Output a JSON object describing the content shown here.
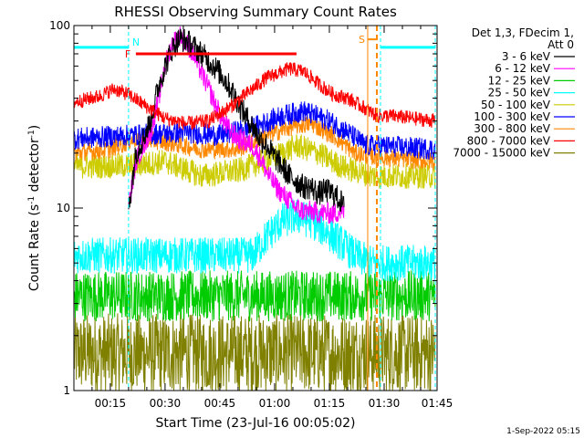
{
  "chart_data": {
    "type": "line",
    "title": "RHESSI Observing Summary Count Rates",
    "xlabel": "Start Time (23-Jul-16 00:05:02)",
    "ylabel_main": "Count Rate (s",
    "ylabel_sup1": "-1",
    "ylabel_mid": " detector",
    "ylabel_sup2": "-1",
    "ylabel_end": ")",
    "y_scale": "log",
    "ylim": [
      1,
      100
    ],
    "xlim_minutes": [
      5.033,
      104.5
    ],
    "x_tick_minutes": [
      15,
      30,
      45,
      60,
      75,
      90,
      105
    ],
    "x_ticks": [
      "00:15",
      "00:30",
      "00:45",
      "01:00",
      "01:15",
      "01:30",
      "01:45"
    ],
    "y_tick_values": [
      1,
      10,
      100
    ],
    "y_ticks": [
      "1",
      "10",
      "100"
    ],
    "grid": false,
    "legend": {
      "position": "top-right",
      "header_line1": "Det 1,3, FDecim 1,",
      "header_line2": "Att 0"
    },
    "series": [
      {
        "name": "3 - 6 keV",
        "color": "#000000",
        "points": [
          [
            19,
            null
          ],
          [
            20,
            10
          ],
          [
            22,
            20
          ],
          [
            24,
            24
          ],
          [
            26,
            30
          ],
          [
            28,
            45
          ],
          [
            30,
            60
          ],
          [
            32,
            75
          ],
          [
            34,
            85
          ],
          [
            36,
            82
          ],
          [
            38,
            76
          ],
          [
            40,
            70
          ],
          [
            42,
            64
          ],
          [
            44,
            58
          ],
          [
            46,
            52
          ],
          [
            48,
            45
          ],
          [
            50,
            38
          ],
          [
            52,
            32
          ],
          [
            54,
            28
          ],
          [
            56,
            24
          ],
          [
            58,
            22
          ],
          [
            60,
            19
          ],
          [
            62,
            17
          ],
          [
            64,
            15
          ],
          [
            66,
            14
          ],
          [
            68,
            13
          ],
          [
            70,
            13
          ],
          [
            72,
            12
          ],
          [
            74,
            12.5
          ],
          [
            76,
            12
          ],
          [
            78,
            11
          ],
          [
            79,
            10
          ]
        ],
        "noise": 0.07
      },
      {
        "name": "6 - 12 keV",
        "color": "#ff00ff",
        "points": [
          [
            19,
            null
          ],
          [
            20,
            10
          ],
          [
            22,
            18
          ],
          [
            24,
            22
          ],
          [
            26,
            26
          ],
          [
            28,
            38
          ],
          [
            30,
            60
          ],
          [
            32,
            80
          ],
          [
            34,
            88
          ],
          [
            36,
            80
          ],
          [
            38,
            68
          ],
          [
            40,
            55
          ],
          [
            42,
            45
          ],
          [
            44,
            36
          ],
          [
            46,
            30
          ],
          [
            48,
            26
          ],
          [
            50,
            24
          ],
          [
            52,
            23
          ],
          [
            54,
            22
          ],
          [
            56,
            19
          ],
          [
            58,
            15.5
          ],
          [
            60,
            13.5
          ],
          [
            62,
            12
          ],
          [
            64,
            11
          ],
          [
            66,
            10
          ],
          [
            68,
            9.6
          ],
          [
            70,
            9.6
          ],
          [
            72,
            9.4
          ],
          [
            74,
            9.4
          ],
          [
            76,
            9.3
          ],
          [
            78,
            9.6
          ],
          [
            79,
            9.6
          ]
        ],
        "noise": 0.06
      },
      {
        "name": "12 - 25 keV",
        "color": "#00cc00",
        "points": [
          [
            5.1,
            3.3
          ],
          [
            104,
            3.3
          ]
        ],
        "noise": 0.14
      },
      {
        "name": "25 - 50 keV",
        "color": "#00ffff",
        "points": [
          [
            5.1,
            5.5
          ],
          [
            54,
            5.5
          ],
          [
            58,
            7
          ],
          [
            62,
            8.5
          ],
          [
            66,
            9
          ],
          [
            70,
            8.5
          ],
          [
            74,
            7.5
          ],
          [
            78,
            6.5
          ],
          [
            82,
            5.5
          ],
          [
            86,
            5
          ],
          [
            104,
            5
          ]
        ],
        "noise": 0.1
      },
      {
        "name": "50 - 100 keV",
        "color": "#cccc00",
        "points": [
          [
            5.1,
            17
          ],
          [
            20,
            17
          ],
          [
            30,
            18
          ],
          [
            40,
            15
          ],
          [
            50,
            16
          ],
          [
            60,
            19
          ],
          [
            66,
            22
          ],
          [
            72,
            20
          ],
          [
            78,
            17
          ],
          [
            82,
            16
          ],
          [
            87,
            15
          ],
          [
            104,
            15
          ]
        ],
        "noise": 0.07
      },
      {
        "name": "100 - 300 keV",
        "color": "#0000ff",
        "points": [
          [
            5.1,
            24
          ],
          [
            20,
            25
          ],
          [
            35,
            26
          ],
          [
            45,
            25
          ],
          [
            55,
            28
          ],
          [
            62,
            32
          ],
          [
            68,
            34
          ],
          [
            75,
            30
          ],
          [
            80,
            26
          ],
          [
            85,
            22
          ],
          [
            88,
            22
          ],
          [
            104,
            21
          ]
        ],
        "noise": 0.06
      },
      {
        "name": "300 - 800 keV",
        "color": "#ff8800",
        "points": [
          [
            5.1,
            20
          ],
          [
            15,
            21
          ],
          [
            22,
            24
          ],
          [
            30,
            23
          ],
          [
            40,
            21
          ],
          [
            50,
            21
          ],
          [
            58,
            25
          ],
          [
            65,
            28
          ],
          [
            70,
            29
          ],
          [
            76,
            25
          ],
          [
            82,
            20
          ],
          [
            88,
            19
          ],
          [
            104,
            18
          ]
        ],
        "noise": 0.05
      },
      {
        "name": "800 - 7000 keV",
        "color": "#ff0000",
        "points": [
          [
            5.1,
            38
          ],
          [
            12,
            41
          ],
          [
            16,
            45
          ],
          [
            20,
            42
          ],
          [
            24,
            37
          ],
          [
            30,
            31
          ],
          [
            36,
            29
          ],
          [
            42,
            30
          ],
          [
            48,
            36
          ],
          [
            54,
            45
          ],
          [
            58,
            52
          ],
          [
            64,
            58
          ],
          [
            68,
            56
          ],
          [
            72,
            48
          ],
          [
            76,
            42
          ],
          [
            80,
            40
          ],
          [
            85,
            35
          ],
          [
            88,
            32
          ],
          [
            92,
            32
          ],
          [
            104,
            30
          ]
        ],
        "noise": 0.04
      },
      {
        "name": "7000 - 15000 keV",
        "color": "#808000",
        "points": [
          [
            5.1,
            1.6
          ],
          [
            104,
            1.6
          ]
        ],
        "noise": 0.22
      }
    ],
    "markers": {
      "flare_label": "F",
      "night_label": "N",
      "saa_label": "S",
      "flare_interval_minutes": [
        22,
        66
      ],
      "flare_level": 70,
      "night_intervals_minutes": [
        [
          5.1,
          20
        ],
        [
          89,
          104
        ]
      ],
      "night_level": 76,
      "saa_interval_minutes": [
        85.5,
        88
      ],
      "saa_level": 84,
      "colors": {
        "flare": "#ff0000",
        "night": "#00ffff",
        "saa": "#ff8800"
      }
    }
  },
  "footer": {
    "timestamp": "1-Sep-2022 05:15"
  }
}
